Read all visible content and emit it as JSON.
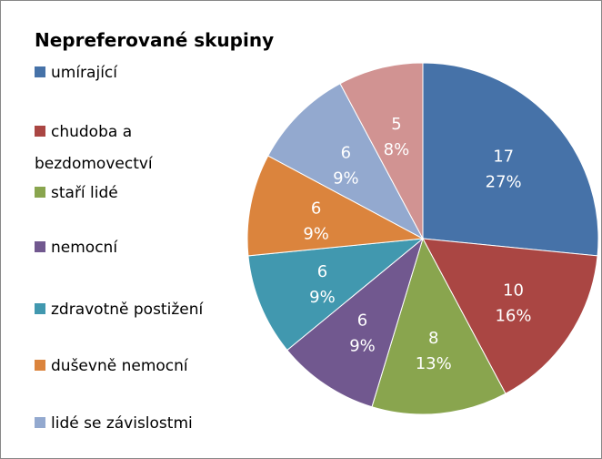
{
  "chart_data": {
    "type": "pie",
    "title": "Nepreferované skupiny",
    "categories": [
      "umírající",
      "chudoba a bezdomovectví",
      "staří lidé",
      "nemocní",
      "zdravotně postižení",
      "duševně nemocní",
      "lidé se závislostmi",
      null
    ],
    "values": [
      17,
      10,
      8,
      6,
      6,
      6,
      6,
      5
    ],
    "percent_labels": [
      "27%",
      "16%",
      "13%",
      "9%",
      "9%",
      "9%",
      "9%",
      "8%"
    ],
    "colors": [
      "#4672a8",
      "#aa4643",
      "#89a54e",
      "#71588f",
      "#4198af",
      "#db843d",
      "#93a9cf",
      "#d19392"
    ],
    "legend": "left"
  }
}
